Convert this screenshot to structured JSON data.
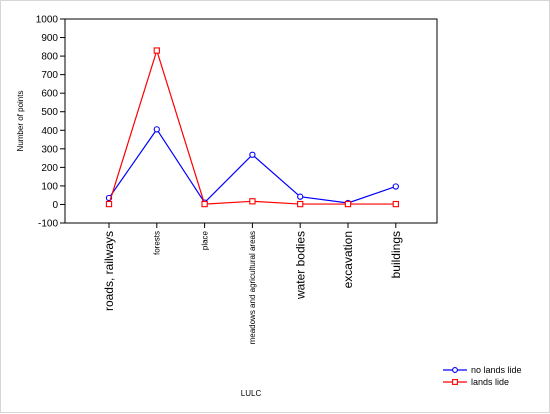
{
  "chart_data": {
    "type": "line",
    "xlabel": "LULC",
    "ylabel": "Number of points",
    "ylim": [
      -100,
      1000
    ],
    "yticks": [
      -100,
      0,
      100,
      200,
      300,
      400,
      500,
      600,
      700,
      800,
      900,
      1000
    ],
    "categories": [
      "roads, railways",
      "forests",
      "place",
      "meadows and agricultural areas",
      "water bodies",
      "excavation",
      "buildings"
    ],
    "series": [
      {
        "name": "no lands lide",
        "color": "#0000ff",
        "values": [
          35,
          405,
          10,
          268,
          42,
          8,
          97
        ]
      },
      {
        "name": "lands lide",
        "color": "#ff0000",
        "values": [
          2,
          830,
          2,
          17,
          2,
          2,
          2
        ]
      }
    ],
    "legend_position": "bottom-right",
    "grid": false
  }
}
